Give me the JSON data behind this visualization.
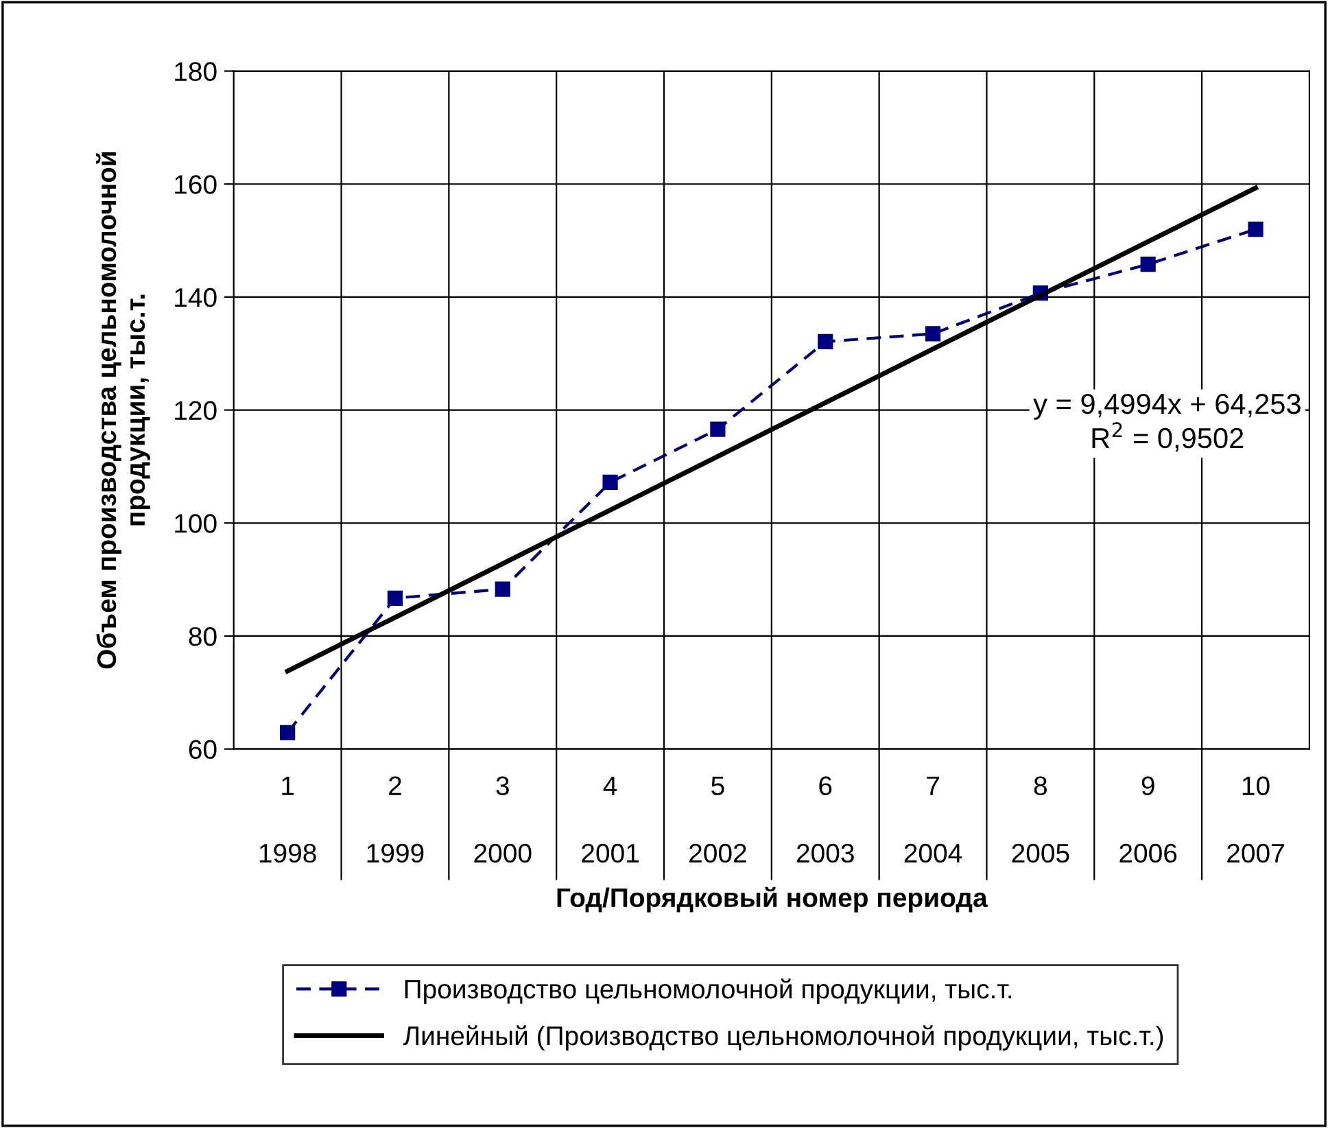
{
  "chart_data": {
    "type": "line",
    "xlabel": "Год/Порядковый номер периода",
    "ylabel": "Объем производства цельномолочной\nпродукции, тыс.т.",
    "categories": [
      "1\n1998",
      "2\n1999",
      "3\n2000",
      "4\n2001",
      "5\n2002",
      "6\n2003",
      "7\n2004",
      "8\n2005",
      "9\n2006",
      "10\n2007"
    ],
    "series": [
      {
        "name": "Производство цельномолочной продукции, тыс.т.",
        "color": "#000080",
        "values": [
          62.9,
          86.7,
          88.3,
          107.2,
          116.6,
          132.1,
          133.5,
          140.7,
          145.8,
          152.0
        ],
        "marker": "square",
        "line_style": "dashed"
      },
      {
        "name": "Линейный (Производство цельномолочной продукции, тыс.т.)",
        "color": "#000000",
        "values": [
          73.8,
          83.3,
          92.8,
          102.3,
          111.8,
          121.3,
          130.8,
          140.3,
          149.8,
          159.3
        ],
        "marker": "none",
        "line_style": "solid"
      }
    ],
    "ylim": [
      60,
      180
    ],
    "yticks": [
      60,
      80,
      100,
      120,
      140,
      160,
      180
    ],
    "grid": true,
    "legend": "bottom",
    "annotations": [
      "y = 9,4994x + 64,253\nR$^{2}$ = 0,9502"
    ]
  }
}
